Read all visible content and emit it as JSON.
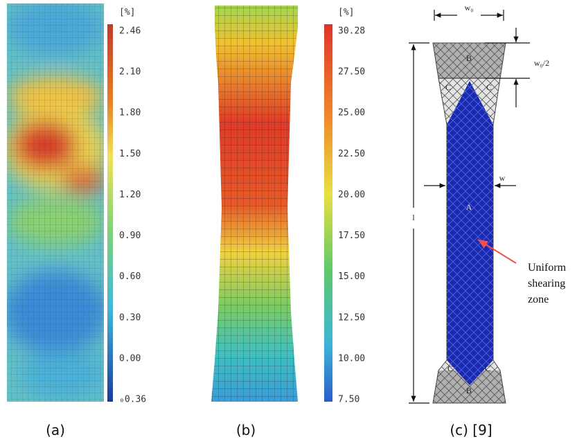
{
  "panels": {
    "a": {
      "caption": "(a)",
      "colorbar": {
        "unit": "[%]",
        "ticks": [
          "2.46",
          "2.10",
          "1.80",
          "1.50",
          "1.20",
          "0.90",
          "0.60",
          "0.30",
          "0.00",
          "₀0.36"
        ]
      }
    },
    "b": {
      "caption": "(b)",
      "colorbar": {
        "unit": "[%]",
        "ticks": [
          "30.28",
          "27.50",
          "25.00",
          "22.50",
          "20.00",
          "17.50",
          "15.00",
          "12.50",
          "10.00",
          "7.50"
        ]
      }
    },
    "c": {
      "caption": "(c) [9]",
      "labels": {
        "w0": "w₀",
        "w0_half": "w₀/2",
        "length": "l",
        "width": "w",
        "top_b": "B",
        "top_c_left": "C",
        "top_c_right": "C",
        "center_a": "A",
        "bottom_c_left": "C",
        "bottom_c_right": "C",
        "bottom_b": "B"
      },
      "annotation": [
        "Uniform",
        "shearing",
        "zone"
      ]
    }
  }
}
